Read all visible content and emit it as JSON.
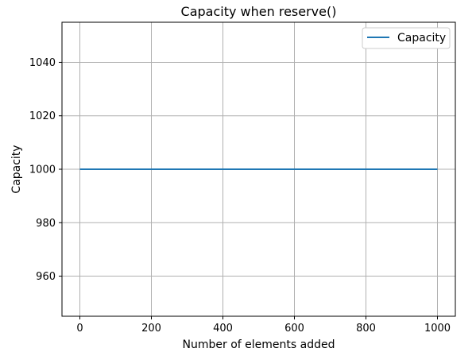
{
  "chart_data": {
    "type": "line",
    "title": "Capacity when reserve()",
    "xlabel": "Number of elements added",
    "ylabel": "Capacity",
    "xlim": [
      -50,
      1050
    ],
    "ylim": [
      945,
      1055
    ],
    "xticks": [
      0,
      200,
      400,
      600,
      800,
      1000
    ],
    "yticks": [
      960,
      980,
      1000,
      1020,
      1040
    ],
    "xtick_labels": [
      "0",
      "200",
      "400",
      "600",
      "800",
      "1000"
    ],
    "ytick_labels": [
      "960",
      "980",
      "1000",
      "1020",
      "1040"
    ],
    "grid": true,
    "legend_position": "top-right",
    "series": [
      {
        "name": "Capacity",
        "color": "#1f77b4",
        "x": [
          0,
          1000
        ],
        "y": [
          1000,
          1000
        ]
      }
    ]
  }
}
